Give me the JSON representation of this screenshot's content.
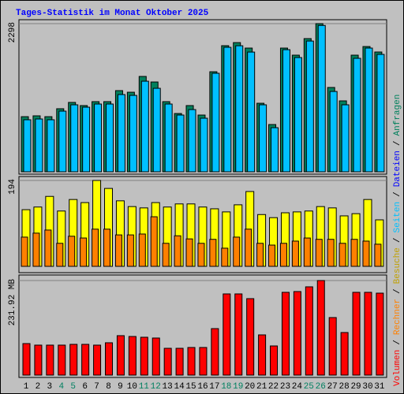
{
  "chart_data": [
    {
      "type": "bar",
      "title": "Tages-Statistik im Monat Oktober 2025",
      "ylim": [
        0,
        2298
      ],
      "yticks": [
        2298
      ],
      "series": [
        {
          "name": "Anfragen",
          "color": "#00805c",
          "values": [
            855,
            868,
            855,
            978,
            1076,
            1027,
            1088,
            1088,
            1259,
            1234,
            1479,
            1393,
            1088,
            904,
            1027,
            880,
            1552,
            1956,
            2004,
            1919,
            1063,
            733,
            1919,
            1809,
            2066,
            2298,
            1308,
            1100,
            1809,
            1943,
            1858
          ]
        },
        {
          "name": "Seiten",
          "color": "#00c0ff",
          "values": [
            807,
            819,
            807,
            941,
            1039,
            1002,
            1051,
            1051,
            1198,
            1185,
            1405,
            1295,
            1051,
            880,
            965,
            831,
            1528,
            1931,
            1955,
            1857,
            1039,
            684,
            1894,
            1772,
            2028,
            2270,
            1246,
            1039,
            1760,
            1919,
            1821
          ]
        }
      ],
      "legend_only": [
        {
          "name": "Dateien",
          "color": "#0000ff"
        }
      ]
    },
    {
      "type": "bar",
      "ylim": [
        0,
        194
      ],
      "yticks": [
        194
      ],
      "series": [
        {
          "name": "Besuche",
          "color": "#ffff00",
          "values": [
            128,
            134,
            158,
            125,
            151,
            144,
            194,
            176,
            148,
            135,
            132,
            144,
            134,
            141,
            141,
            134,
            130,
            123,
            139,
            169,
            117,
            110,
            121,
            123,
            125,
            135,
            132,
            114,
            119,
            151,
            105
          ]
        },
        {
          "name": "Rechner",
          "color": "#ff8000",
          "values": [
            66,
            75,
            82,
            52,
            68,
            64,
            84,
            84,
            71,
            71,
            73,
            112,
            52,
            69,
            62,
            52,
            61,
            41,
            66,
            84,
            52,
            48,
            52,
            57,
            64,
            61,
            61,
            52,
            61,
            57,
            50
          ]
        }
      ]
    },
    {
      "type": "bar",
      "ylim": [
        0,
        231.92
      ],
      "yticks": [
        {
          "value": 231.92,
          "label": "231.92 MB"
        }
      ],
      "categories": [
        "1",
        "2",
        "3",
        "4",
        "5",
        "6",
        "7",
        "8",
        "9",
        "10",
        "11",
        "12",
        "13",
        "14",
        "15",
        "16",
        "17",
        "18",
        "19",
        "20",
        "21",
        "22",
        "23",
        "24",
        "25",
        "26",
        "27",
        "28",
        "29",
        "30",
        "31"
      ],
      "highlighted_categories": [
        "4",
        "5",
        "11",
        "12",
        "18",
        "19",
        "25",
        "26"
      ],
      "highlight_color": "#008060",
      "series": [
        {
          "name": "Volumen",
          "color": "#ff0000",
          "values": [
            77.3,
            73.5,
            73.5,
            73.5,
            75.4,
            75.4,
            73.5,
            79.3,
            96.7,
            94.7,
            92.8,
            90.9,
            65.7,
            65.7,
            67.7,
            67.7,
            114.0,
            199.1,
            199.1,
            187.5,
            98.6,
            71.5,
            203.0,
            204.9,
            216.5,
            231.92,
            141.1,
            104.4,
            203.0,
            203.0,
            201.0
          ]
        }
      ]
    }
  ],
  "legend_separator": "/"
}
